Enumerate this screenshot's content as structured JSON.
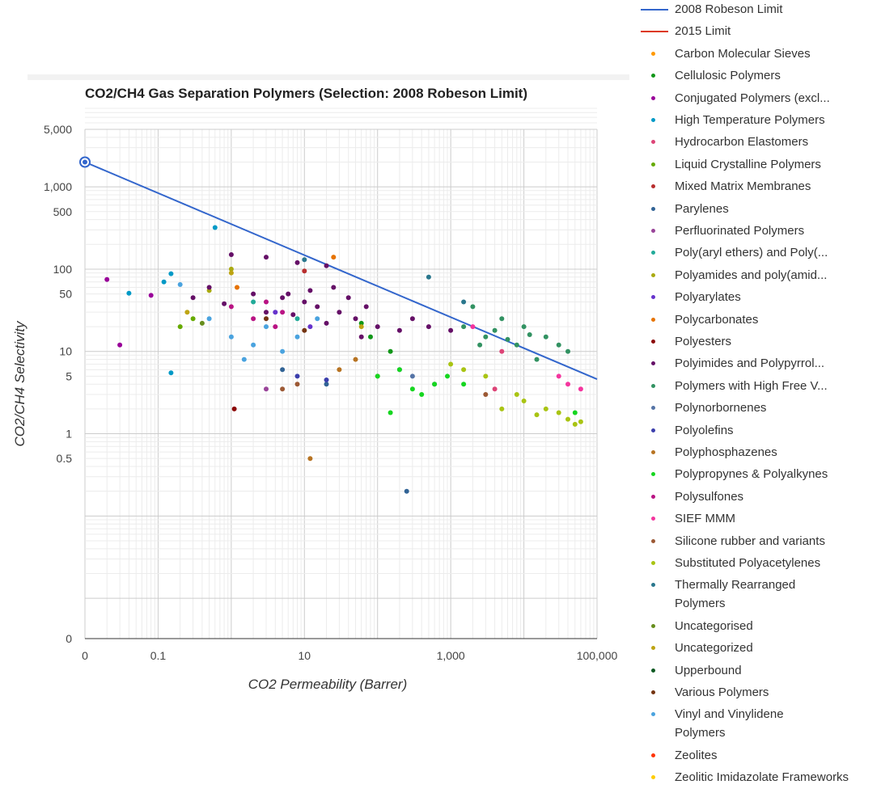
{
  "chart_data": {
    "type": "scatter",
    "title": "CO2/CH4 Gas Separation Polymers (Selection: 2008 Robeson Limit)",
    "xlabel": "CO2 Permeability (Barrer)",
    "ylabel": "CO2/CH4 Selectivity",
    "x_scale": "log",
    "y_scale": "log",
    "x_ticks": [
      "0",
      "0.1",
      "10",
      "1,000",
      "100,000"
    ],
    "y_ticks": [
      "5,000",
      "1,000",
      "500",
      "100",
      "50",
      "10",
      "5",
      "1",
      "0.5",
      "0"
    ],
    "selected_point": {
      "x": 0.01,
      "y": 2000
    },
    "series": [
      {
        "name": "2008 Robeson Limit",
        "kind": "line",
        "color": "#3366cc",
        "points": [
          [
            0.01,
            2000
          ],
          [
            100000,
            4.6
          ]
        ]
      },
      {
        "name": "2015 Limit",
        "kind": "line",
        "color": "#dc3912",
        "points": []
      },
      {
        "name": "Carbon Molecular Sieves",
        "color": "#ff9900",
        "points": []
      },
      {
        "name": "Cellulosic Polymers",
        "color": "#109618",
        "points": [
          [
            80,
            15
          ],
          [
            60,
            22
          ],
          [
            150,
            10
          ]
        ]
      },
      {
        "name": "Conjugated Polymers (excl...",
        "color": "#990099",
        "points": [
          [
            0.03,
            12
          ],
          [
            0.02,
            75
          ],
          [
            0.08,
            48
          ]
        ]
      },
      {
        "name": "High Temperature Polymers",
        "color": "#0099c6",
        "points": [
          [
            0.6,
            320
          ],
          [
            0.15,
            88
          ],
          [
            0.04,
            51
          ],
          [
            0.15,
            5.5
          ],
          [
            0.12,
            70
          ]
        ]
      },
      {
        "name": "Hydrocarbon Elastomers",
        "color": "#dd4477",
        "points": [
          [
            5000,
            10
          ],
          [
            4000,
            3.5
          ]
        ]
      },
      {
        "name": "Liquid Crystalline Polymers",
        "color": "#66aa00",
        "points": [
          [
            0.3,
            25
          ],
          [
            0.2,
            20
          ]
        ]
      },
      {
        "name": "Mixed Matrix Membranes",
        "color": "#b82e2e",
        "points": [
          [
            10,
            95
          ]
        ]
      },
      {
        "name": "Parylenes",
        "color": "#316395",
        "points": [
          [
            250,
            0.2
          ],
          [
            20,
            4
          ],
          [
            5,
            6
          ]
        ]
      },
      {
        "name": "Perfluorinated Polymers",
        "color": "#994499",
        "points": [
          [
            3,
            3.5
          ]
        ]
      },
      {
        "name": "Poly(aryl ethers) and Poly(...",
        "color": "#22aa99",
        "points": [
          [
            2,
            40
          ],
          [
            8,
            25
          ]
        ]
      },
      {
        "name": "Polyamides and poly(amid...",
        "color": "#aaaa11",
        "points": [
          [
            1,
            100
          ],
          [
            0.5,
            55
          ]
        ]
      },
      {
        "name": "Polyarylates",
        "color": "#6633cc",
        "points": [
          [
            4,
            30
          ],
          [
            12,
            20
          ]
        ]
      },
      {
        "name": "Polycarbonates",
        "color": "#e67300",
        "points": [
          [
            25,
            140
          ],
          [
            1.2,
            60
          ]
        ]
      },
      {
        "name": "Polyesters",
        "color": "#8b0707",
        "points": [
          [
            1.1,
            2
          ]
        ]
      },
      {
        "name": "Polyimides and Polypyrrol...",
        "color": "#651067",
        "points": [
          [
            1,
            150
          ],
          [
            3,
            140
          ],
          [
            8,
            120
          ],
          [
            20,
            110
          ],
          [
            0.5,
            60
          ],
          [
            2,
            50
          ],
          [
            5,
            45
          ],
          [
            10,
            40
          ],
          [
            15,
            35
          ],
          [
            30,
            30
          ],
          [
            50,
            25
          ],
          [
            100,
            20
          ],
          [
            200,
            18
          ],
          [
            500,
            20
          ],
          [
            1000,
            18
          ],
          [
            3,
            30
          ],
          [
            7,
            28
          ],
          [
            0.3,
            45
          ],
          [
            0.8,
            38
          ],
          [
            12,
            55
          ],
          [
            40,
            45
          ],
          [
            70,
            35
          ],
          [
            300,
            25
          ],
          [
            25,
            60
          ],
          [
            6,
            50
          ],
          [
            20,
            22
          ],
          [
            60,
            15
          ]
        ]
      },
      {
        "name": "Polymers with High Free V...",
        "color": "#329262",
        "points": [
          [
            2000,
            35
          ],
          [
            5000,
            25
          ],
          [
            3000,
            15
          ],
          [
            8000,
            12
          ],
          [
            10000,
            20
          ],
          [
            20000,
            15
          ],
          [
            40000,
            10
          ],
          [
            15000,
            8
          ],
          [
            1500,
            20
          ],
          [
            4000,
            18
          ],
          [
            30000,
            12
          ],
          [
            6000,
            14
          ],
          [
            2500,
            12
          ],
          [
            12000,
            16
          ]
        ]
      },
      {
        "name": "Polynorbornenes",
        "color": "#5574a6",
        "points": [
          [
            300,
            5
          ],
          [
            600,
            4
          ],
          [
            200,
            6
          ]
        ]
      },
      {
        "name": "Polyolefins",
        "color": "#3b3eac",
        "points": [
          [
            20,
            4.5
          ],
          [
            8,
            5
          ]
        ]
      },
      {
        "name": "Polyphosphazenes",
        "color": "#b77322",
        "points": [
          [
            12,
            0.5
          ],
          [
            50,
            8
          ],
          [
            30,
            6
          ],
          [
            100,
            5
          ]
        ]
      },
      {
        "name": "Polypropynes & Polyalkynes",
        "color": "#16d620",
        "points": [
          [
            150,
            1.8
          ],
          [
            300,
            3.5
          ],
          [
            600,
            4
          ],
          [
            900,
            5
          ],
          [
            1500,
            4
          ],
          [
            50000,
            1.8
          ],
          [
            200,
            6
          ],
          [
            400,
            3
          ],
          [
            100,
            5
          ]
        ]
      },
      {
        "name": "Polysulfones",
        "color": "#b91383",
        "points": [
          [
            3,
            40
          ],
          [
            1,
            35
          ],
          [
            5,
            30
          ],
          [
            2,
            25
          ],
          [
            4,
            20
          ]
        ]
      },
      {
        "name": "SIEF MMM",
        "color": "#f4359e",
        "points": [
          [
            30000,
            5
          ],
          [
            40000,
            4
          ],
          [
            60000,
            3.5
          ],
          [
            2000,
            20
          ]
        ]
      },
      {
        "name": "Silicone rubber and variants",
        "color": "#9c5935",
        "points": [
          [
            5,
            3.5
          ],
          [
            8,
            4
          ],
          [
            3000,
            3
          ]
        ]
      },
      {
        "name": "Substituted Polyacetylenes",
        "color": "#a9c413",
        "points": [
          [
            40000,
            1.5
          ],
          [
            50000,
            1.3
          ],
          [
            60000,
            1.4
          ],
          [
            20000,
            2
          ],
          [
            30000,
            1.8
          ],
          [
            10000,
            2.5
          ],
          [
            8000,
            3
          ],
          [
            5000,
            2
          ],
          [
            15000,
            1.7
          ],
          [
            3000,
            5
          ],
          [
            1500,
            6
          ],
          [
            1000,
            7
          ]
        ]
      },
      {
        "name": "Thermally Rearranged Polymers",
        "color": "#2a778d",
        "points": [
          [
            10,
            130
          ],
          [
            500,
            80
          ],
          [
            1500,
            40
          ]
        ]
      },
      {
        "name": "Uncategorised",
        "color": "#668d1c",
        "points": [
          [
            0.4,
            22
          ]
        ]
      },
      {
        "name": "Uncategorized",
        "color": "#bea413",
        "points": [
          [
            1,
            90
          ],
          [
            0.25,
            30
          ],
          [
            60,
            20
          ]
        ]
      },
      {
        "name": "Upperbound",
        "color": "#0c5922",
        "points": []
      },
      {
        "name": "Various Polymers",
        "color": "#743411",
        "points": [
          [
            3,
            25
          ],
          [
            10,
            18
          ]
        ]
      },
      {
        "name": "Vinyl and Vinylidene Polymers",
        "color": "#4aa3df",
        "points": [
          [
            0.2,
            65
          ],
          [
            0.5,
            25
          ],
          [
            1,
            15
          ],
          [
            3,
            20
          ],
          [
            5,
            10
          ],
          [
            2,
            12
          ],
          [
            1.5,
            8
          ],
          [
            8,
            15
          ],
          [
            15,
            25
          ]
        ]
      },
      {
        "name": "Zeolites",
        "color": "#ff3300",
        "points": []
      },
      {
        "name": "Zeolitic Imidazolate Frameworks",
        "color": "#ffcc00",
        "points": []
      }
    ]
  }
}
